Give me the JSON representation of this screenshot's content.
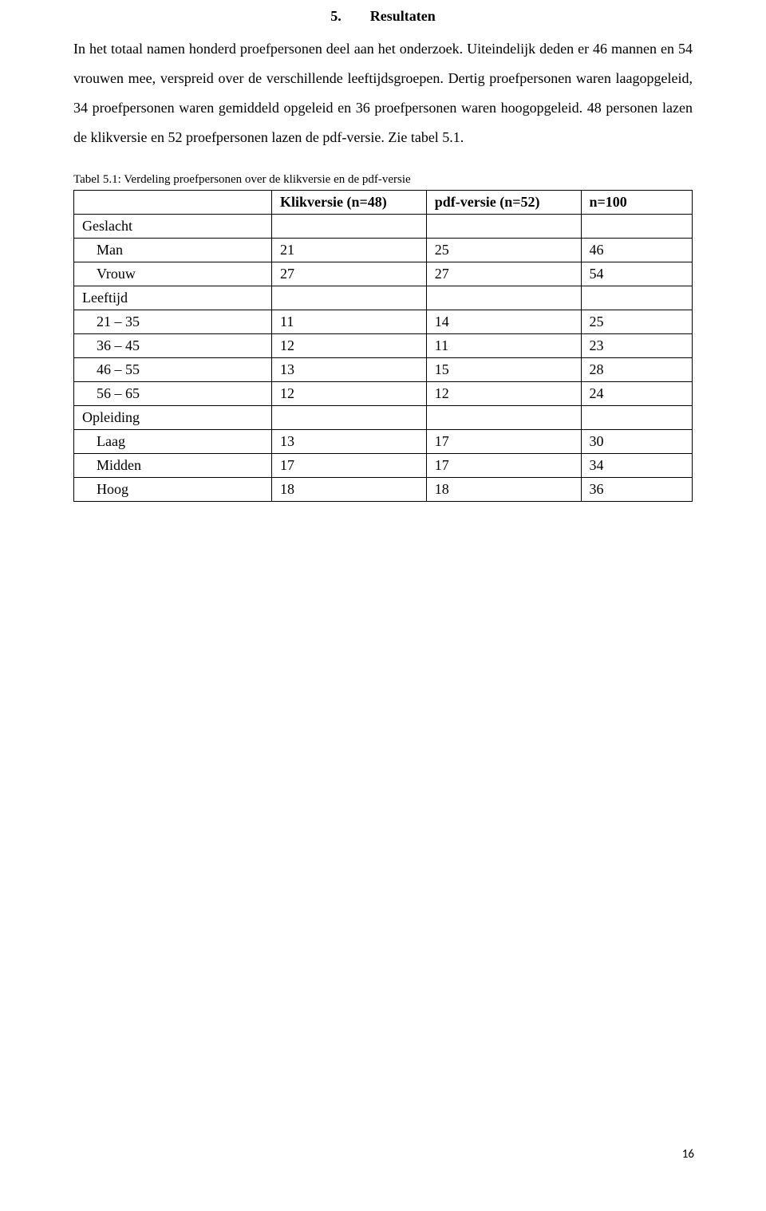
{
  "heading": {
    "number": "5.",
    "title": "Resultaten"
  },
  "paragraph": "In het totaal namen honderd proefpersonen deel aan het onderzoek. Uiteindelijk deden er 46 mannen en 54 vrouwen mee, verspreid over de verschillende leeftijdsgroepen. Dertig proefpersonen waren laagopgeleid, 34 proefpersonen waren gemiddeld opgeleid en 36 proefpersonen waren hoogopgeleid. 48 personen lazen de klikversie en 52 proefpersonen lazen de pdf-versie. Zie tabel 5.1.",
  "table": {
    "caption": "Tabel 5.1: Verdeling proefpersonen over de klikversie en de pdf-versie",
    "columns": [
      "Klikversie (n=48)",
      "pdf-versie (n=52)",
      "n=100"
    ],
    "groups": [
      {
        "label": "Geslacht",
        "rows": [
          {
            "label": "Man",
            "cells": [
              "21",
              "25",
              "46"
            ]
          },
          {
            "label": "Vrouw",
            "cells": [
              "27",
              "27",
              "54"
            ]
          }
        ]
      },
      {
        "label": "Leeftijd",
        "rows": [
          {
            "label": "21 – 35",
            "cells": [
              "11",
              "14",
              "25"
            ]
          },
          {
            "label": "36 – 45",
            "cells": [
              "12",
              "11",
              "23"
            ]
          },
          {
            "label": "46 – 55",
            "cells": [
              "13",
              "15",
              "28"
            ]
          },
          {
            "label": "56 – 65",
            "cells": [
              "12",
              "12",
              "24"
            ]
          }
        ]
      },
      {
        "label": "Opleiding",
        "rows": [
          {
            "label": "Laag",
            "cells": [
              "13",
              "17",
              "30"
            ]
          },
          {
            "label": "Midden",
            "cells": [
              "17",
              "17",
              "34"
            ]
          },
          {
            "label": "Hoog",
            "cells": [
              "18",
              "18",
              "36"
            ]
          }
        ]
      }
    ]
  },
  "page_number": "16"
}
